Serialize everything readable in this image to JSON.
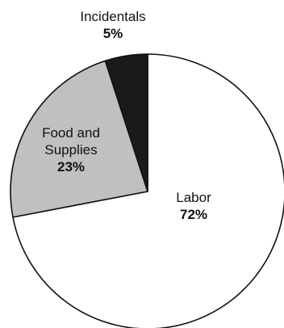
{
  "chart_data": {
    "type": "pie",
    "title": "",
    "slices": [
      {
        "label_lines": [
          "Labor"
        ],
        "value": 72,
        "value_label": "72%",
        "color": "#ffffff"
      },
      {
        "label_lines": [
          "Food and",
          "Supplies"
        ],
        "value": 23,
        "value_label": "23%",
        "color": "#c0c0c0"
      },
      {
        "label_lines": [
          "Incidentals"
        ],
        "value": 5,
        "value_label": "5%",
        "color": "#1a1a1a"
      }
    ],
    "start": "top",
    "direction": "clockwise",
    "legend": "none"
  }
}
